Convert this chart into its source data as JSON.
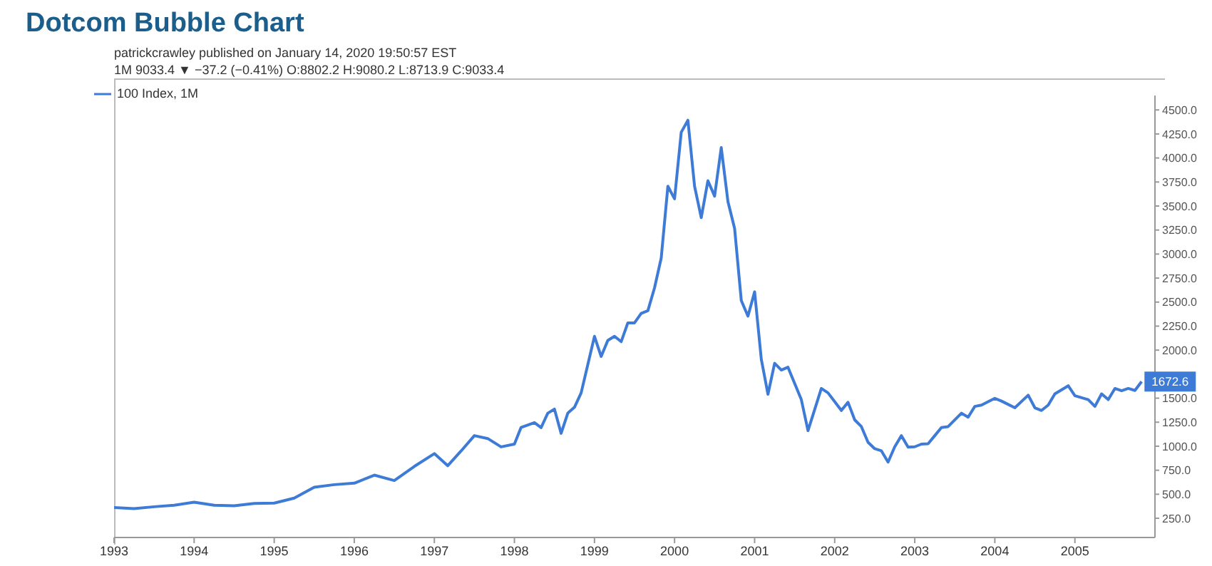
{
  "chart_data": {
    "type": "line",
    "title": "Dotcom Bubble Chart",
    "annotations": [
      "patrickcrawley published on January 14, 2020 19:50:57 EST",
      "1M 9033.4 ▼ −37.2 (−0.41%) O:8802.2 H:9080.2 L:8713.9 C:9033.4"
    ],
    "x": [
      "1993-01",
      "1993-04",
      "1993-07",
      "1993-10",
      "1994-01",
      "1994-04",
      "1994-07",
      "1994-10",
      "1995-01",
      "1995-04",
      "1995-07",
      "1995-10",
      "1996-01",
      "1996-04",
      "1996-07",
      "1996-10",
      "1997-01",
      "1997-03",
      "1997-05",
      "1997-07",
      "1997-09",
      "1997-11",
      "1998-01",
      "1998-02",
      "1998-04",
      "1998-05",
      "1998-06",
      "1998-07",
      "1998-08",
      "1998-09",
      "1998-10",
      "1998-11",
      "1999-01",
      "1999-02",
      "1999-03",
      "1999-04",
      "1999-05",
      "1999-06",
      "1999-07",
      "1999-08",
      "1999-09",
      "1999-10",
      "1999-11",
      "1999-12",
      "2000-01",
      "2000-02",
      "2000-03",
      "2000-04",
      "2000-05",
      "2000-06",
      "2000-07",
      "2000-08",
      "2000-09",
      "2000-10",
      "2000-11",
      "2000-12",
      "2001-01",
      "2001-02",
      "2001-03",
      "2001-04",
      "2001-05",
      "2001-06",
      "2001-08",
      "2001-09",
      "2001-11",
      "2001-12",
      "2002-02",
      "2002-03",
      "2002-04",
      "2002-05",
      "2002-06",
      "2002-07",
      "2002-08",
      "2002-09",
      "2002-10",
      "2002-11",
      "2002-12",
      "2003-01",
      "2003-02",
      "2003-03",
      "2003-04",
      "2003-05",
      "2003-06",
      "2003-08",
      "2003-09",
      "2003-10",
      "2003-11",
      "2004-01",
      "2004-02",
      "2004-04",
      "2004-06",
      "2004-07",
      "2004-08",
      "2004-09",
      "2004-10",
      "2004-12",
      "2005-01",
      "2005-03",
      "2005-04",
      "2005-05",
      "2005-06",
      "2005-07",
      "2005-08",
      "2005-09",
      "2005-10",
      "2005-11"
    ],
    "series": [
      {
        "name": "100 Index, 1M",
        "color": "#3d7bd6",
        "values": [
          362,
          350,
          370,
          385,
          418,
          385,
          380,
          405,
          408,
          460,
          573,
          600,
          615,
          699,
          643,
          790,
          923,
          797,
          950,
          1110,
          1080,
          993,
          1022,
          1196,
          1246,
          1194,
          1344,
          1386,
          1134,
          1344,
          1405,
          1555,
          2144,
          1934,
          2102,
          2144,
          2088,
          2284,
          2284,
          2382,
          2410,
          2649,
          2958,
          3706,
          3575,
          4267,
          4393,
          3706,
          3379,
          3763,
          3603,
          4108,
          3547,
          3266,
          2517,
          2354,
          2607,
          1906,
          1541,
          1863,
          1793,
          1822,
          1485,
          1162,
          1601,
          1555,
          1372,
          1457,
          1274,
          1204,
          1040,
          974,
          952,
          835,
          994,
          1110,
          990,
          994,
          1022,
          1026,
          1110,
          1194,
          1204,
          1344,
          1302,
          1414,
          1428,
          1498,
          1470,
          1400,
          1531,
          1400,
          1372,
          1428,
          1545,
          1629,
          1526,
          1485,
          1414,
          1545,
          1485,
          1601,
          1577,
          1601,
          1580,
          1672.6
        ],
        "value_labels": [
          null,
          null,
          null,
          null,
          null,
          null,
          null,
          null,
          null,
          null,
          null,
          null,
          null,
          null,
          null,
          null,
          null,
          null,
          null,
          null,
          null,
          null,
          null,
          null,
          null,
          null,
          null,
          null,
          null,
          null,
          null,
          null,
          null,
          null,
          null,
          null,
          null,
          null,
          null,
          null,
          null,
          null,
          null,
          null,
          null,
          null,
          null,
          null,
          null,
          null,
          null,
          null,
          null,
          null,
          null,
          null,
          null,
          null,
          null,
          null,
          null,
          null,
          null,
          null,
          null,
          null,
          null,
          null,
          null,
          null,
          null,
          null,
          null,
          null,
          null,
          null,
          null,
          null,
          null,
          null,
          null,
          null,
          null,
          null,
          null,
          null,
          null,
          null,
          null,
          null,
          null,
          null,
          null,
          null,
          null,
          null,
          null,
          null,
          null,
          null,
          null,
          null,
          null,
          null,
          null,
          "1672.6"
        ]
      }
    ],
    "xlim": [
      "1993-01",
      "2006-01"
    ],
    "xticks": [
      "1993",
      "1994",
      "1995",
      "1996",
      "1997",
      "1998",
      "1999",
      "2000",
      "2001",
      "2002",
      "2003",
      "2004",
      "2005"
    ],
    "ylim": [
      50,
      4650
    ],
    "yticks": [
      {
        "value": 250,
        "label": "250.0"
      },
      {
        "value": 500,
        "label": "500.0"
      },
      {
        "value": 750,
        "label": "750.0"
      },
      {
        "value": 1000,
        "label": "1000.0"
      },
      {
        "value": 1250,
        "label": "1250.0"
      },
      {
        "value": 1500,
        "label": "1500.0"
      },
      {
        "value": 1750,
        "label": null
      },
      {
        "value": 2000,
        "label": "2000.0"
      },
      {
        "value": 2250,
        "label": "2250.0"
      },
      {
        "value": 2500,
        "label": "2500.0"
      },
      {
        "value": 2750,
        "label": "2750.0"
      },
      {
        "value": 3000,
        "label": "3000.0"
      },
      {
        "value": 3250,
        "label": "3250.0"
      },
      {
        "value": 3500,
        "label": "3500.0"
      },
      {
        "value": 3750,
        "label": "3750.0"
      },
      {
        "value": 4000,
        "label": "4000.0"
      },
      {
        "value": 4250,
        "label": "4250.0"
      },
      {
        "value": 4500,
        "label": "4500.0"
      }
    ],
    "legend": "top left",
    "marker": "none",
    "line_style": "solid"
  }
}
